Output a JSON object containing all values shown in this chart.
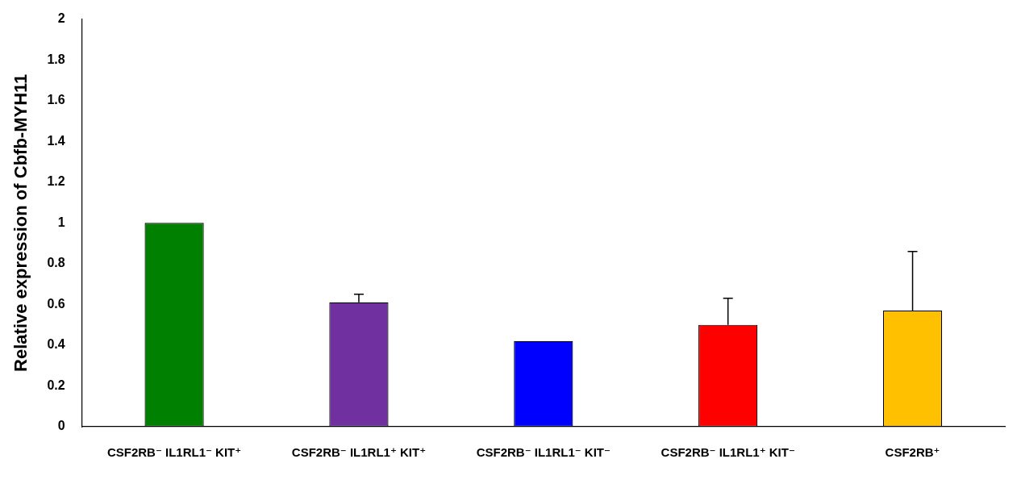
{
  "chart_data": {
    "type": "bar",
    "ylabel": "Relative expression of Cbfb-MYH11",
    "categories": [
      "CSF2RB⁻ IL1RL1⁻ KIT⁺",
      "CSF2RB⁻ IL1RL1⁺ KIT⁺",
      "CSF2RB⁻ IL1RL1⁻ KIT⁻",
      "CSF2RB⁻ IL1RL1⁺ KIT⁻",
      "CSF2RB⁺"
    ],
    "values": [
      1.0,
      0.61,
      0.42,
      0.5,
      0.57
    ],
    "colors": [
      "#008000",
      "#7030a0",
      "#0000ff",
      "#ff0000",
      "#ffc000"
    ],
    "errors": [
      null,
      [
        0.61,
        0.65
      ],
      null,
      [
        0.5,
        0.63
      ],
      [
        0.57,
        0.86
      ]
    ],
    "ylim": [
      0,
      2
    ],
    "yticks": [
      0,
      0.2,
      0.4,
      0.6,
      0.8,
      1,
      1.2,
      1.4,
      1.6,
      1.8,
      2
    ],
    "grid": false,
    "legend": false
  }
}
